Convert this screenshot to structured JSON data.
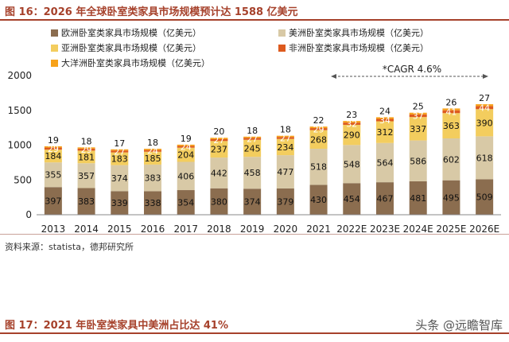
{
  "header": {
    "figure16_title": "图 16：2026 年全球卧室类家具市场规模预计达 1588 亿美元",
    "figure17_title": "图 17：2021 年卧室类家具中美洲占比达 41%",
    "source": "资料来源：statista，德邦研究所",
    "watermark": "头条 @远瞻智库"
  },
  "chart_data": {
    "type": "bar",
    "stacked": true,
    "categories": [
      "2013",
      "2014",
      "2015",
      "2016",
      "2017",
      "2018",
      "2019",
      "2020",
      "2021",
      "2022E",
      "2023E",
      "2024E",
      "2025E",
      "2026E"
    ],
    "series": [
      {
        "name": "欧洲卧室类家具市场规模（亿美元）",
        "color": "#8b6d4f",
        "values": [
          397,
          383,
          339,
          338,
          354,
          380,
          374,
          379,
          430,
          454,
          467,
          481,
          495,
          509
        ]
      },
      {
        "name": "美洲卧室类家具市场规模（亿美元）",
        "color": "#d8c9a6",
        "values": [
          355,
          357,
          374,
          383,
          406,
          442,
          458,
          477,
          518,
          548,
          564,
          586,
          602,
          618
        ]
      },
      {
        "name": "亚洲卧室类家具市场规模（亿美元）",
        "color": "#f3cd5e",
        "values": [
          184,
          181,
          183,
          185,
          204,
          237,
          245,
          234,
          268,
          290,
          312,
          337,
          363,
          390
        ]
      },
      {
        "name": "非洲卧室类家具市场规模（亿美元）",
        "color": "#dd5a1e",
        "values": [
          29,
          29,
          27,
          24,
          24,
          27,
          27,
          27,
          29,
          32,
          34,
          37,
          41,
          44
        ]
      },
      {
        "name": "大洋洲卧室类家具市场规模（亿美元）",
        "color": "#f7a21a",
        "values": [
          19,
          18,
          17,
          18,
          19,
          20,
          18,
          18,
          22,
          23,
          24,
          25,
          26,
          27
        ]
      }
    ],
    "y_ticks": [
      "0",
      "500",
      "1000",
      "1500",
      "2000"
    ],
    "ylim": [
      0,
      2000
    ],
    "grid": false,
    "legend_position": "top",
    "annotation": "*CAGR 4.6%"
  }
}
